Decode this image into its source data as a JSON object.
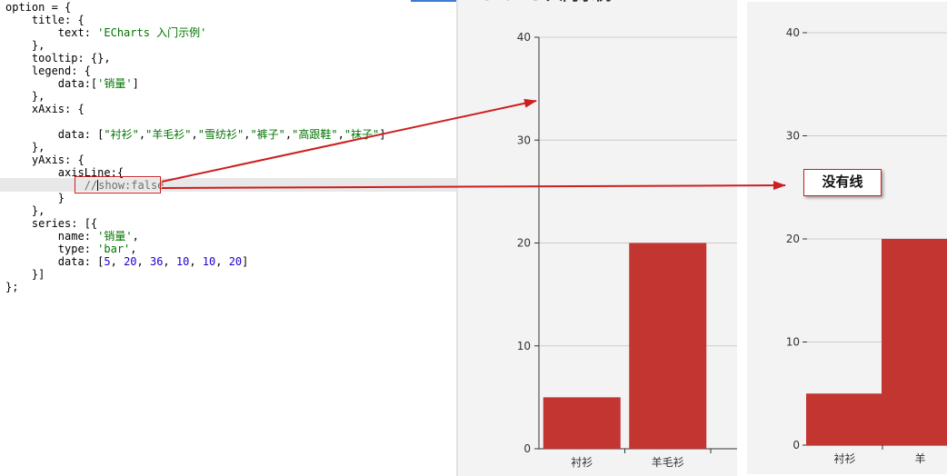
{
  "editor": {
    "lines": [
      "option = {",
      "    title: {",
      "        text: 'ECharts 入门示例'",
      "    },",
      "    tooltip: {},",
      "    legend: {",
      "        data:['销量']",
      "    },",
      "    xAxis: {",
      "",
      "        data: [\"衬衫\",\"羊毛衫\",\"雪纺衫\",\"裤子\",\"高跟鞋\",\"袜子\"]",
      "    },",
      "    yAxis: {",
      "        axisLine:{",
      "            //show:false",
      "        }",
      "    },",
      "    series: [{",
      "        name: '销量',",
      "        type: 'bar',",
      "        data: [5, 20, 36, 10, 10, 20]",
      "    }]",
      "};"
    ]
  },
  "callout": {
    "text": "没有线"
  },
  "colors": {
    "bar": "#c23531",
    "annotation": "#cc1f1f",
    "panel_bg": "#f3f3f3",
    "grid": "#cccccc"
  },
  "chart_data": [
    {
      "type": "bar",
      "title": "ECharts 入门示例",
      "categories": [
        "衬衫",
        "羊毛衫"
      ],
      "values": [
        5,
        20
      ],
      "ylim": [
        0,
        40
      ],
      "yticks": [
        0,
        10,
        20,
        30,
        40
      ],
      "y_axis_line": true,
      "grid": true
    },
    {
      "type": "bar",
      "title": "",
      "categories": [
        "衬衫",
        "羊"
      ],
      "values": [
        5,
        20
      ],
      "ylim": [
        0,
        40
      ],
      "yticks": [
        0,
        10,
        20,
        30,
        40
      ],
      "y_axis_line": false,
      "grid": true
    }
  ]
}
